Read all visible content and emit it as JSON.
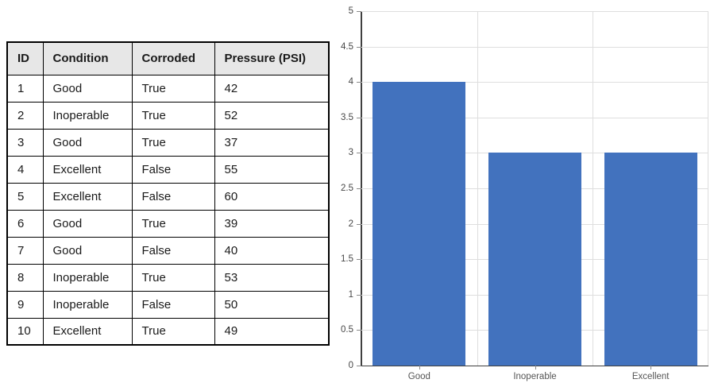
{
  "table": {
    "headers": [
      "ID",
      "Condition",
      "Corroded",
      "Pressure (PSI)"
    ],
    "rows": [
      [
        "1",
        "Good",
        "True",
        "42"
      ],
      [
        "2",
        "Inoperable",
        "True",
        "52"
      ],
      [
        "3",
        "Good",
        "True",
        "37"
      ],
      [
        "4",
        "Excellent",
        "False",
        "55"
      ],
      [
        "5",
        "Excellent",
        "False",
        "60"
      ],
      [
        "6",
        "Good",
        "True",
        "39"
      ],
      [
        "7",
        "Good",
        "False",
        "40"
      ],
      [
        "8",
        "Inoperable",
        "True",
        "53"
      ],
      [
        "9",
        "Inoperable",
        "False",
        "50"
      ],
      [
        "10",
        "Excellent",
        "True",
        "49"
      ]
    ],
    "header_bg": "#e7e7e7",
    "border_color": "#000000"
  },
  "chart_data": {
    "type": "bar",
    "categories": [
      "Good",
      "Inoperable",
      "Excellent"
    ],
    "values": [
      4,
      3,
      3
    ],
    "title": "",
    "xlabel": "",
    "ylabel": "",
    "ylim": [
      0,
      5
    ],
    "ytick_step": 0.5,
    "ytick_labels": [
      "0",
      "0.5",
      "1",
      "1.5",
      "2",
      "2.5",
      "3",
      "3.5",
      "4",
      "4.5",
      "5"
    ],
    "bar_color": "#4272be",
    "gridline_color": "#dedede",
    "axis_color": "#404040",
    "grid": "horizontal-and-category-boundaries",
    "legend_position": "none"
  }
}
